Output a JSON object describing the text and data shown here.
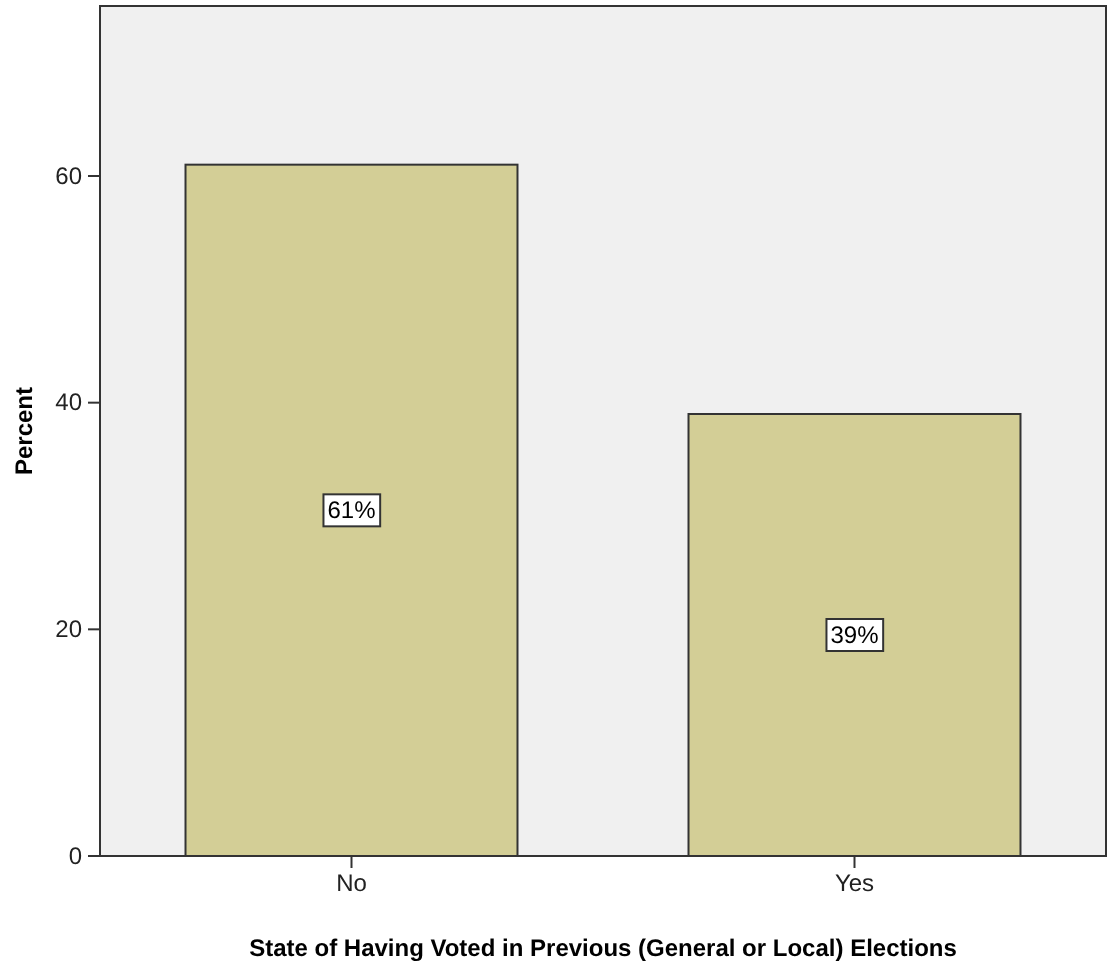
{
  "chart_data": {
    "type": "bar",
    "xlabel": "State of Having Voted in Previous (General or Local) Elections",
    "ylabel": "Percent",
    "categories": [
      "No",
      "Yes"
    ],
    "values": [
      61,
      39
    ],
    "value_labels": [
      "61%",
      "39%"
    ],
    "color": "#d3ce96",
    "ylim": [
      0,
      75
    ],
    "yticks": [
      0,
      20,
      40,
      60
    ],
    "grid": false
  }
}
